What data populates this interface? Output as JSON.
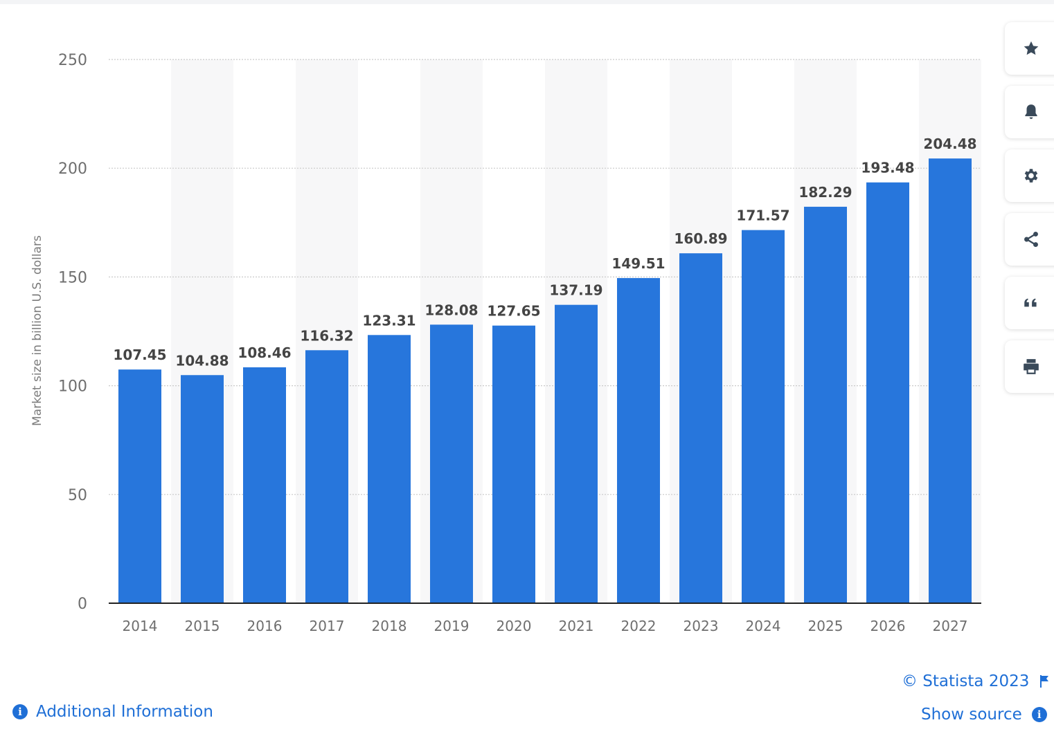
{
  "chart_data": {
    "type": "bar",
    "categories": [
      "2014",
      "2015",
      "2016",
      "2017",
      "2018",
      "2019",
      "2020",
      "2021",
      "2022",
      "2023",
      "2024",
      "2025",
      "2026",
      "2027"
    ],
    "values": [
      107.45,
      104.88,
      108.46,
      116.32,
      123.31,
      128.08,
      127.65,
      137.19,
      149.51,
      160.89,
      171.57,
      182.29,
      193.48,
      204.48
    ],
    "value_labels": [
      "107.45",
      "104.88",
      "108.46",
      "116.32",
      "123.31",
      "128.08",
      "127.65",
      "137.19",
      "149.51",
      "160.89",
      "171.57",
      "182.29",
      "193.48",
      "204.48"
    ],
    "ylabel": "Market size in billion U.S. dollars",
    "ylim": [
      0,
      250
    ],
    "yticks": [
      0,
      50,
      100,
      150,
      200,
      250
    ],
    "ytick_labels": [
      "0",
      "50",
      "100",
      "150",
      "200",
      "250"
    ],
    "grid": true,
    "bar_color": "#2776dc",
    "band_color": "#f7f7f8"
  },
  "toolbar": {
    "icons": [
      "star-icon",
      "bell-icon",
      "gear-icon",
      "share-icon",
      "quote-icon",
      "print-icon"
    ]
  },
  "footer": {
    "copyright": "© Statista 2023",
    "show_source": "Show source",
    "additional_info": "Additional Information"
  }
}
